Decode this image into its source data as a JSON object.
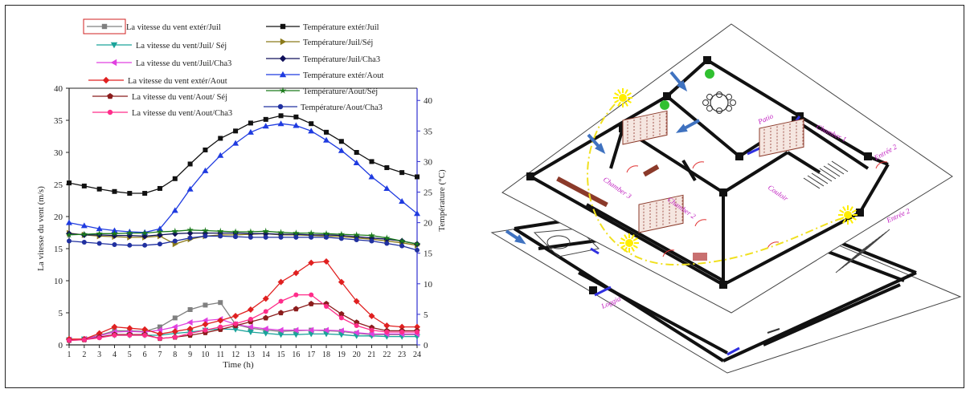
{
  "chart_data": {
    "type": "line",
    "x": [
      1,
      2,
      3,
      4,
      5,
      6,
      7,
      8,
      9,
      10,
      11,
      12,
      13,
      14,
      15,
      16,
      17,
      18,
      19,
      20,
      21,
      22,
      23,
      24
    ],
    "xlabel": "Time (h)",
    "ylabel_left": "La vitesse du vent (m/s)",
    "ylabel_right": "Température (°C)",
    "ylim_left": [
      0,
      40
    ],
    "ylim_right": [
      0,
      42
    ],
    "yticks_left": [
      0,
      5,
      10,
      15,
      20,
      25,
      30,
      35,
      40
    ],
    "yticks_right": [
      0,
      5,
      10,
      15,
      20,
      25,
      30,
      35,
      40
    ],
    "xlim": [
      1,
      24
    ],
    "wind_series": [
      {
        "name": "La vitesse du vent extér/Juil",
        "color": "#808080",
        "marker": "square",
        "values": [
          0.8,
          0.9,
          1.5,
          2.2,
          2.2,
          2.1,
          2.8,
          4.2,
          5.5,
          6.2,
          6.6,
          3.2,
          2.6,
          2.3,
          2.1,
          2.2,
          2.3,
          2.2,
          2.1,
          1.8,
          1.6,
          1.6,
          1.6,
          1.6
        ]
      },
      {
        "name": "La vitesse du vent/Juil/ Séj",
        "color": "#1aa39a",
        "marker": "tri-down",
        "values": [
          0.8,
          0.9,
          1.2,
          1.5,
          1.5,
          1.5,
          1.5,
          1.8,
          2.0,
          2.3,
          2.5,
          2.4,
          2.0,
          1.8,
          1.6,
          1.6,
          1.7,
          1.7,
          1.6,
          1.4,
          1.4,
          1.3,
          1.3,
          1.3
        ]
      },
      {
        "name": "La vitesse du vent/Juil/Cha3",
        "color": "#e040e0",
        "marker": "tri-left",
        "values": [
          0.8,
          0.9,
          1.4,
          2.0,
          2.1,
          2.0,
          2.3,
          2.8,
          3.5,
          3.8,
          4.0,
          3.2,
          2.8,
          2.5,
          2.3,
          2.3,
          2.3,
          2.3,
          2.2,
          1.9,
          1.7,
          1.7,
          1.7,
          1.7
        ]
      },
      {
        "name": "La vitesse du vent extér/Aout",
        "color": "#e02020",
        "marker": "diamond",
        "values": [
          0.9,
          0.9,
          1.8,
          2.8,
          2.6,
          2.4,
          1.7,
          2.1,
          2.5,
          3.2,
          3.8,
          4.5,
          5.5,
          7.2,
          9.8,
          11.2,
          12.8,
          13.0,
          9.8,
          6.8,
          4.5,
          3.0,
          2.8,
          2.8
        ]
      },
      {
        "name": "La vitesse du vent/Aout/ Séj",
        "color": "#8b1c1c",
        "marker": "pentagon",
        "values": [
          0.7,
          0.8,
          1.2,
          1.6,
          1.6,
          1.6,
          1.0,
          1.2,
          1.5,
          1.9,
          2.4,
          3.0,
          3.6,
          4.2,
          5.0,
          5.6,
          6.4,
          6.4,
          4.8,
          3.5,
          2.7,
          2.2,
          2.2,
          2.2
        ]
      },
      {
        "name": "La vitesse du vent/Aout/Cha3",
        "color": "#ff2d8a",
        "marker": "circle",
        "values": [
          0.7,
          0.8,
          1.1,
          1.5,
          1.5,
          1.5,
          1.0,
          1.2,
          1.8,
          2.3,
          2.8,
          3.3,
          4.0,
          5.2,
          6.8,
          7.8,
          7.8,
          6.0,
          4.2,
          3.0,
          2.3,
          2.0,
          2.0,
          2.0
        ]
      }
    ],
    "temp_series": [
      {
        "name": "Température extér/Juil",
        "color": "#111111",
        "marker": "square",
        "values": [
          26.5,
          26.0,
          25.5,
          25.1,
          24.8,
          24.8,
          25.6,
          27.2,
          29.6,
          31.9,
          33.8,
          35.0,
          36.3,
          36.9,
          37.5,
          37.3,
          36.2,
          34.8,
          33.3,
          31.5,
          30.0,
          29.0,
          28.2,
          27.5
        ]
      },
      {
        "name": "Température/Juil/Séj",
        "color": "#8b7a1a",
        "marker": "tri-right",
        "values": [
          18.3,
          18.0,
          17.8,
          17.7,
          17.6,
          17.6,
          17.8,
          16.5,
          17.3,
          17.8,
          18.0,
          18.0,
          18.1,
          18.2,
          18.0,
          18.0,
          17.9,
          17.8,
          17.7,
          17.5,
          17.3,
          17.0,
          16.7,
          16.3
        ]
      },
      {
        "name": "Température/Juil/Cha3",
        "color": "#10105a",
        "marker": "diamond",
        "values": [
          18.2,
          18.0,
          18.0,
          17.9,
          17.9,
          17.8,
          18.0,
          18.2,
          18.3,
          18.3,
          18.3,
          18.3,
          18.2,
          18.2,
          18.1,
          18.1,
          18.0,
          18.0,
          17.9,
          17.7,
          17.5,
          17.3,
          17.0,
          16.5
        ]
      },
      {
        "name": "Température extér/Aout",
        "color": "#1f3be0",
        "marker": "triangle",
        "values": [
          20.0,
          19.5,
          19.0,
          18.7,
          18.5,
          18.4,
          19.0,
          22.0,
          25.5,
          28.5,
          31.0,
          33.0,
          34.8,
          35.8,
          36.2,
          35.9,
          35.0,
          33.5,
          31.8,
          29.8,
          27.5,
          25.6,
          23.5,
          21.5
        ]
      },
      {
        "name": "Température/Aout/Séj",
        "color": "#1a7a1a",
        "marker": "star",
        "values": [
          18.0,
          18.1,
          18.2,
          18.2,
          18.3,
          18.3,
          18.5,
          18.6,
          18.8,
          18.7,
          18.6,
          18.5,
          18.5,
          18.6,
          18.4,
          18.3,
          18.3,
          18.2,
          18.1,
          18.0,
          17.9,
          17.5,
          17.0,
          16.5
        ]
      },
      {
        "name": "Température/Aout/Cha3",
        "color": "#2030a0",
        "marker": "circle",
        "values": [
          17.0,
          16.8,
          16.6,
          16.4,
          16.3,
          16.3,
          16.5,
          17.0,
          17.5,
          17.8,
          17.8,
          17.7,
          17.6,
          17.6,
          17.6,
          17.6,
          17.6,
          17.6,
          17.4,
          17.2,
          17.0,
          16.6,
          16.2,
          15.5
        ]
      }
    ]
  },
  "plan": {
    "labels": [
      "Patio",
      "Chamber 1",
      "Entrée 2",
      "Chamber 3",
      "Couloir",
      "Chamber 2",
      "Entrée 2",
      "Loggia"
    ],
    "line_color": "#f0e020",
    "sun_color": "#ffee00",
    "arrow_color": "#3f72c0",
    "label_color": "#c020c0"
  }
}
